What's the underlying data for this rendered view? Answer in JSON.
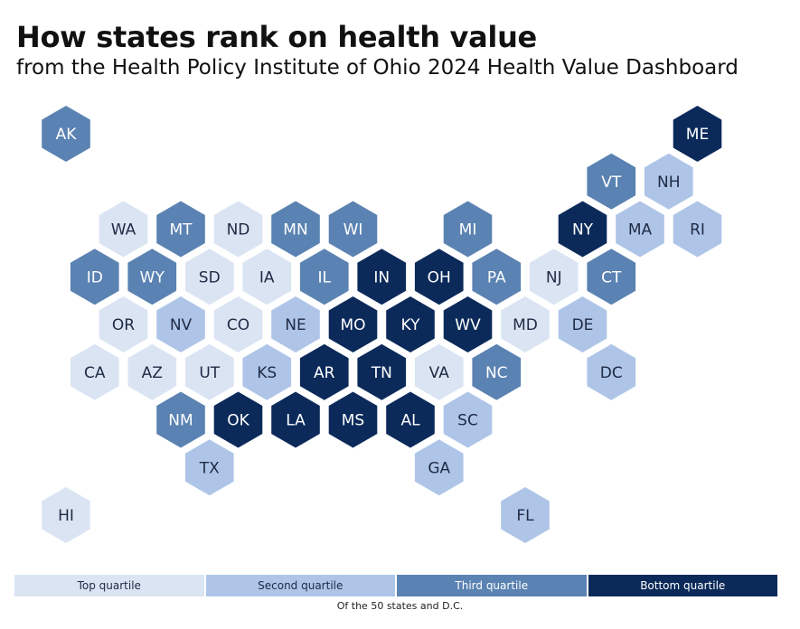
{
  "title": "How states rank on health value",
  "subtitle": "from the Health Policy Institute of Ohio 2024 Health Value Dashboard",
  "quartile_colors": {
    "1": {
      "fill": "#dae4f3",
      "text": "#1f2a44"
    },
    "2": {
      "fill": "#aec5e8",
      "text": "#1f2a44"
    },
    "3": {
      "fill": "#5a82b2",
      "text": "#ffffff"
    },
    "4": {
      "fill": "#0b2a5a",
      "text": "#ffffff"
    }
  },
  "states": [
    {
      "abbr": "AK",
      "quartile": 3,
      "row": 0,
      "col": 0
    },
    {
      "abbr": "ME",
      "quartile": 4,
      "row": 0,
      "col": 11
    },
    {
      "abbr": "VT",
      "quartile": 3,
      "row": 1,
      "col": 10
    },
    {
      "abbr": "NH",
      "quartile": 2,
      "row": 1,
      "col": 11
    },
    {
      "abbr": "WA",
      "quartile": 1,
      "row": 2,
      "col": 1
    },
    {
      "abbr": "MT",
      "quartile": 3,
      "row": 2,
      "col": 2
    },
    {
      "abbr": "ND",
      "quartile": 1,
      "row": 2,
      "col": 3
    },
    {
      "abbr": "MN",
      "quartile": 3,
      "row": 2,
      "col": 4
    },
    {
      "abbr": "WI",
      "quartile": 3,
      "row": 2,
      "col": 5
    },
    {
      "abbr": "MI",
      "quartile": 3,
      "row": 2,
      "col": 7
    },
    {
      "abbr": "NY",
      "quartile": 4,
      "row": 2,
      "col": 9
    },
    {
      "abbr": "MA",
      "quartile": 2,
      "row": 2,
      "col": 10
    },
    {
      "abbr": "RI",
      "quartile": 2,
      "row": 2,
      "col": 11
    },
    {
      "abbr": "ID",
      "quartile": 3,
      "row": 3,
      "col": 1
    },
    {
      "abbr": "WY",
      "quartile": 3,
      "row": 3,
      "col": 2
    },
    {
      "abbr": "SD",
      "quartile": 1,
      "row": 3,
      "col": 3
    },
    {
      "abbr": "IA",
      "quartile": 1,
      "row": 3,
      "col": 4
    },
    {
      "abbr": "IL",
      "quartile": 3,
      "row": 3,
      "col": 5
    },
    {
      "abbr": "IN",
      "quartile": 4,
      "row": 3,
      "col": 6
    },
    {
      "abbr": "OH",
      "quartile": 4,
      "row": 3,
      "col": 7
    },
    {
      "abbr": "PA",
      "quartile": 3,
      "row": 3,
      "col": 8
    },
    {
      "abbr": "NJ",
      "quartile": 1,
      "row": 3,
      "col": 9
    },
    {
      "abbr": "CT",
      "quartile": 3,
      "row": 3,
      "col": 10
    },
    {
      "abbr": "OR",
      "quartile": 1,
      "row": 4,
      "col": 1
    },
    {
      "abbr": "NV",
      "quartile": 2,
      "row": 4,
      "col": 2
    },
    {
      "abbr": "CO",
      "quartile": 1,
      "row": 4,
      "col": 3
    },
    {
      "abbr": "NE",
      "quartile": 2,
      "row": 4,
      "col": 4
    },
    {
      "abbr": "MO",
      "quartile": 4,
      "row": 4,
      "col": 5
    },
    {
      "abbr": "KY",
      "quartile": 4,
      "row": 4,
      "col": 6
    },
    {
      "abbr": "WV",
      "quartile": 4,
      "row": 4,
      "col": 7
    },
    {
      "abbr": "MD",
      "quartile": 1,
      "row": 4,
      "col": 8
    },
    {
      "abbr": "DE",
      "quartile": 2,
      "row": 4,
      "col": 9
    },
    {
      "abbr": "CA",
      "quartile": 1,
      "row": 5,
      "col": 1
    },
    {
      "abbr": "AZ",
      "quartile": 1,
      "row": 5,
      "col": 2
    },
    {
      "abbr": "UT",
      "quartile": 1,
      "row": 5,
      "col": 3
    },
    {
      "abbr": "KS",
      "quartile": 2,
      "row": 5,
      "col": 4
    },
    {
      "abbr": "AR",
      "quartile": 4,
      "row": 5,
      "col": 5
    },
    {
      "abbr": "TN",
      "quartile": 4,
      "row": 5,
      "col": 6
    },
    {
      "abbr": "VA",
      "quartile": 1,
      "row": 5,
      "col": 7
    },
    {
      "abbr": "NC",
      "quartile": 3,
      "row": 5,
      "col": 8
    },
    {
      "abbr": "DC",
      "quartile": 2,
      "row": 5,
      "col": 10
    },
    {
      "abbr": "NM",
      "quartile": 3,
      "row": 6,
      "col": 2
    },
    {
      "abbr": "OK",
      "quartile": 4,
      "row": 6,
      "col": 3
    },
    {
      "abbr": "LA",
      "quartile": 4,
      "row": 6,
      "col": 4
    },
    {
      "abbr": "MS",
      "quartile": 4,
      "row": 6,
      "col": 5
    },
    {
      "abbr": "AL",
      "quartile": 4,
      "row": 6,
      "col": 6
    },
    {
      "abbr": "SC",
      "quartile": 2,
      "row": 6,
      "col": 7
    },
    {
      "abbr": "TX",
      "quartile": 2,
      "row": 7,
      "col": 3
    },
    {
      "abbr": "GA",
      "quartile": 2,
      "row": 7,
      "col": 7
    },
    {
      "abbr": "HI",
      "quartile": 1,
      "row": 8,
      "col": 0
    },
    {
      "abbr": "FL",
      "quartile": 2,
      "row": 8,
      "col": 8
    }
  ],
  "legend": [
    {
      "label": "Top quartile",
      "quartile": 1
    },
    {
      "label": "Second quartile",
      "quartile": 2
    },
    {
      "label": "Third quartile",
      "quartile": 3
    },
    {
      "label": "Bottom quartile",
      "quartile": 4
    }
  ],
  "note": "Of the 50 states and D.C."
}
